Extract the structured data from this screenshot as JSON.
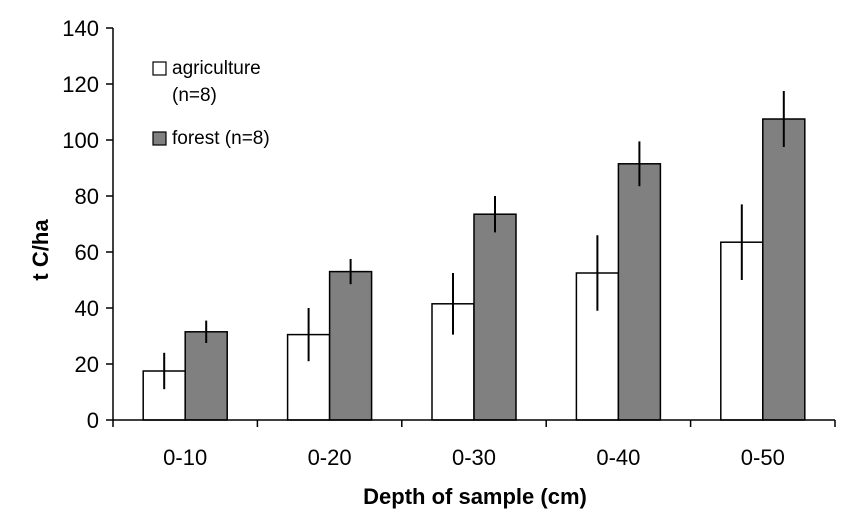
{
  "chart_data": {
    "type": "bar",
    "title": "",
    "xlabel": "Depth of sample (cm)",
    "ylabel": "t C/ha",
    "ylim": [
      0,
      140
    ],
    "yticks": [
      0,
      20,
      40,
      60,
      80,
      100,
      120,
      140
    ],
    "grid": false,
    "legend_position": "top-left",
    "categories": [
      "0-10",
      "0-20",
      "0-30",
      "0-40",
      "0-50"
    ],
    "series": [
      {
        "name": "agriculture (n=8)",
        "legend_lines": [
          "agriculture",
          "(n=8)"
        ],
        "color": "#ffffff",
        "values": [
          17.5,
          30.5,
          41.5,
          52.5,
          63.5
        ],
        "errors": [
          6.5,
          9.5,
          11,
          13.5,
          13.5
        ]
      },
      {
        "name": "forest (n=8)",
        "legend_lines": [
          "forest (n=8)"
        ],
        "color": "#808080",
        "values": [
          31.5,
          53,
          73.5,
          91.5,
          107.5
        ],
        "errors": [
          4,
          4.5,
          6.5,
          8,
          10
        ]
      }
    ]
  }
}
